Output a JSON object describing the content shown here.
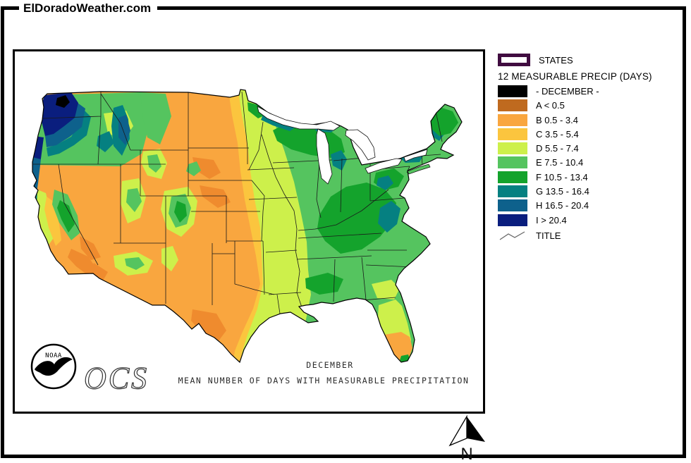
{
  "site": {
    "title": "ElDoradoWeather.com"
  },
  "legend": {
    "states_label": "STATES",
    "states_border_color": "#400C40",
    "heading": "12 MEASURABLE PRECIP (DAYS)",
    "classes": [
      {
        "key": "DEC",
        "label": "- DECEMBER -",
        "color": "#000000"
      },
      {
        "key": "A",
        "label": "A < 0.5",
        "color": "#BF6A1F"
      },
      {
        "key": "B",
        "label": "B 0.5 - 3.4",
        "color": "#F9A63F"
      },
      {
        "key": "C",
        "label": "C 3.5 - 5.4",
        "color": "#FBC53E"
      },
      {
        "key": "D",
        "label": "D 5.5 - 7.4",
        "color": "#CDF04B"
      },
      {
        "key": "E",
        "label": "E 7.5 - 10.4",
        "color": "#55C45F"
      },
      {
        "key": "F",
        "label": "F 10.5 - 13.4",
        "color": "#14A32C"
      },
      {
        "key": "G",
        "label": "G 13.5 - 16.4",
        "color": "#058081"
      },
      {
        "key": "H",
        "label": "H 16.5 - 20.4",
        "color": "#0E618C"
      },
      {
        "key": "I",
        "label": "I > 20.4",
        "color": "#0A1E7E"
      }
    ],
    "title_item_label": "TITLE"
  },
  "map": {
    "caption_line1": "DECEMBER",
    "caption_line2": "MEAN NUMBER OF DAYS WITH MEASURABLE PRECIPITATION",
    "noaa_label": "NOAA",
    "ocs_label": "OCS",
    "extra_colors": {
      "A2": "#EF8B2E",
      "water": "#FFFFFF"
    }
  },
  "compass": {
    "north_label": "N"
  }
}
